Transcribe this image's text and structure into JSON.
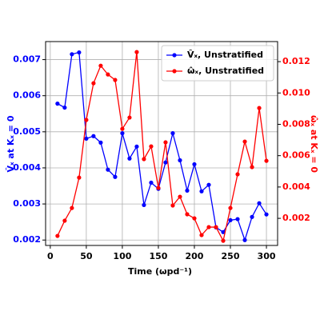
{
  "chart_data": {
    "type": "line",
    "x_label": "Time (ωpd⁻¹)",
    "y_label": "V̂ₓ at Kₓ = 0",
    "y2_label": "ω̂ₓ at Kₓ = 0",
    "x": [
      10,
      20,
      30,
      40,
      50,
      60,
      70,
      80,
      90,
      100,
      110,
      120,
      130,
      140,
      150,
      160,
      170,
      180,
      190,
      200,
      210,
      220,
      230,
      240,
      250,
      260,
      270,
      280,
      290,
      300
    ],
    "series": [
      {
        "name": "V̂ₓ, Unstratified",
        "color": "#0000ff",
        "values": [
          0.00578,
          0.00567,
          0.00715,
          0.0072,
          0.00481,
          0.00488,
          0.0047,
          0.00395,
          0.00375,
          0.00496,
          0.00426,
          0.00459,
          0.00297,
          0.00359,
          0.00342,
          0.00415,
          0.00496,
          0.00421,
          0.00337,
          0.0041,
          0.00335,
          0.00353,
          0.00235,
          0.00222,
          0.00255,
          0.00258,
          0.002,
          0.00264,
          0.00302,
          0.00271
        ]
      },
      {
        "name": "ω̂ₓ, Unstratified",
        "color": "#ff0000",
        "axis": "y2",
        "values": [
          0.00088,
          0.00185,
          0.00266,
          0.0046,
          0.00828,
          0.01062,
          0.01174,
          0.01118,
          0.01083,
          0.00771,
          0.00843,
          0.01261,
          0.00578,
          0.00659,
          0.00394,
          0.00685,
          0.00282,
          0.00338,
          0.00226,
          0.002,
          0.00093,
          0.00144,
          0.00144,
          0.00057,
          0.00266,
          0.00481,
          0.0069,
          0.00527,
          0.00904,
          0.00567
        ]
      }
    ],
    "xlim": [
      -6.5,
      315.5
    ],
    "xticks": [
      0,
      50,
      100,
      150,
      200,
      250,
      300
    ],
    "ylim": [
      0.00185,
      0.0075
    ],
    "yticks": [
      0.002,
      0.003,
      0.004,
      0.005,
      0.006,
      0.007
    ],
    "y2lim": [
      0.00027,
      0.01328
    ],
    "y2ticks": [
      0.002,
      0.004,
      0.006,
      0.008,
      {
        "value": 0.01,
        "label": "0.010"
      },
      0.012
    ],
    "grid": true,
    "legend": "upper right"
  }
}
